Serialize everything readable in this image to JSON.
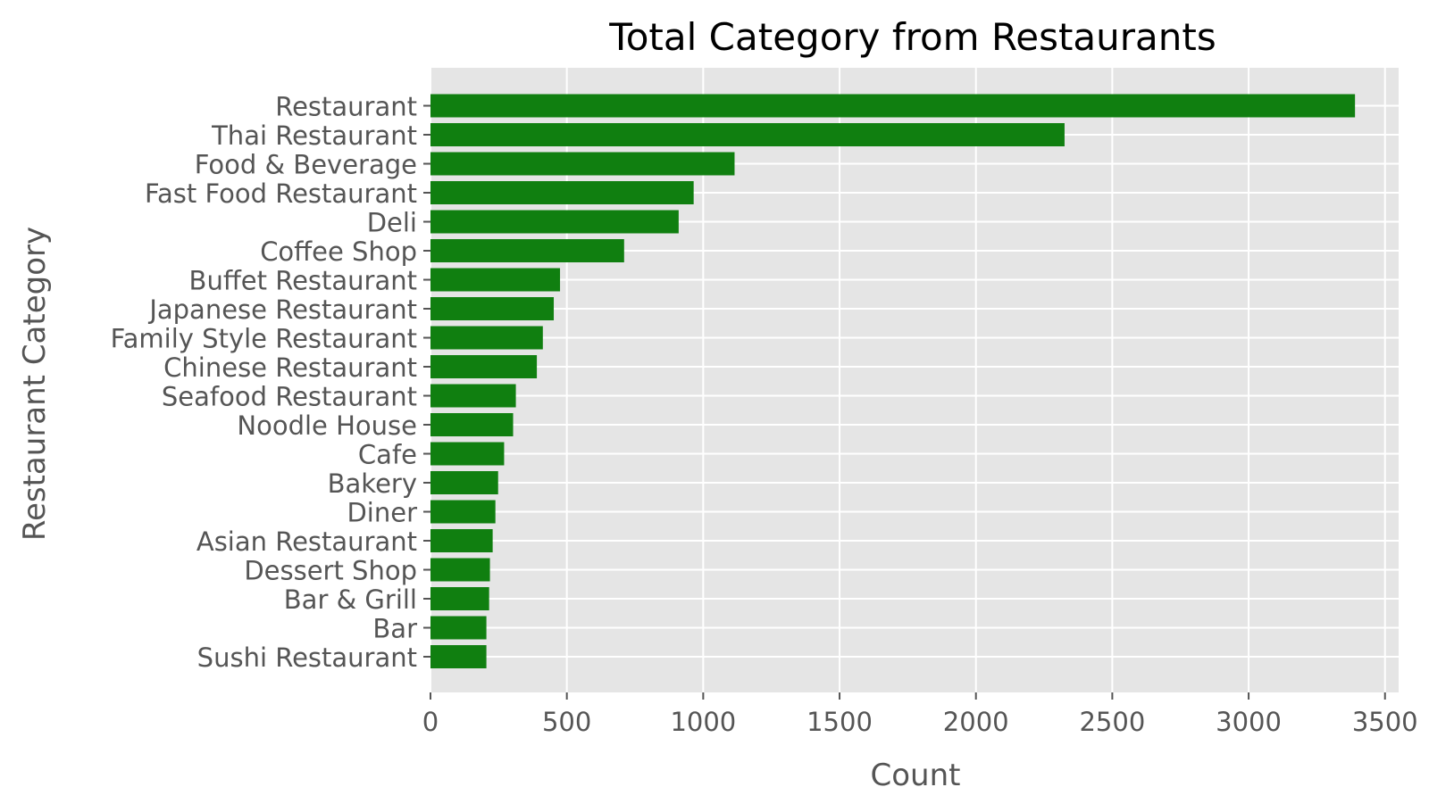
{
  "chart_data": {
    "type": "bar",
    "orientation": "horizontal",
    "title": "Total Category from Restaurants",
    "xlabel": "Count",
    "ylabel": "Restaurant Category",
    "xlim": [
      0,
      3550
    ],
    "xticks": [
      0,
      500,
      1000,
      1500,
      2000,
      2500,
      3000,
      3500
    ],
    "grid": true,
    "legend": "none",
    "categories": [
      "Restaurant",
      "Thai Restaurant",
      "Food & Beverage",
      "Fast Food Restaurant",
      "Deli",
      "Coffee Shop",
      "Buffet Restaurant",
      "Japanese Restaurant",
      "Family Style Restaurant",
      "Chinese Restaurant",
      "Seafood Restaurant",
      "Noodle House",
      "Cafe",
      "Bakery",
      "Diner",
      "Asian Restaurant",
      "Dessert Shop",
      "Bar & Grill",
      "Bar",
      "Sushi Restaurant"
    ],
    "values": [
      3390,
      2325,
      1115,
      965,
      910,
      710,
      475,
      452,
      412,
      390,
      313,
      303,
      270,
      248,
      238,
      228,
      218,
      215,
      205,
      205
    ],
    "colors": {
      "bar": "#107f10",
      "plot_background": "#e5e5e5",
      "grid": "#ffffff"
    }
  }
}
